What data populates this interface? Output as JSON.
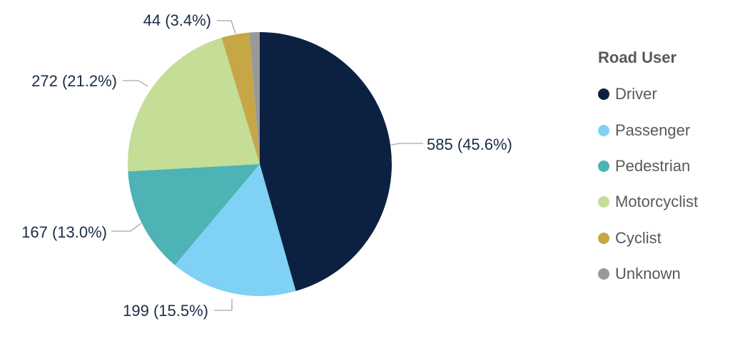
{
  "chart_data": {
    "type": "pie",
    "title": "",
    "legend": {
      "title": "Road User",
      "placement": "right"
    },
    "slices": [
      {
        "name": "Driver",
        "value": 585,
        "percent": 45.6,
        "label": "585 (45.6%)",
        "color": "#0c2142"
      },
      {
        "name": "Passenger",
        "value": 199,
        "percent": 15.5,
        "label": "199 (15.5%)",
        "color": "#7fd1f5"
      },
      {
        "name": "Pedestrian",
        "value": 167,
        "percent": 13.0,
        "label": "167 (13.0%)",
        "color": "#4db3b5"
      },
      {
        "name": "Motorcyclist",
        "value": 272,
        "percent": 21.2,
        "label": "272 (21.2%)",
        "color": "#c4dd97"
      },
      {
        "name": "Cyclist",
        "value": 44,
        "percent": 3.4,
        "label": "44 (3.4%)",
        "color": "#c6a746"
      },
      {
        "name": "Unknown",
        "value": 16,
        "percent": 1.2,
        "label": "",
        "color": "#999999"
      }
    ]
  }
}
